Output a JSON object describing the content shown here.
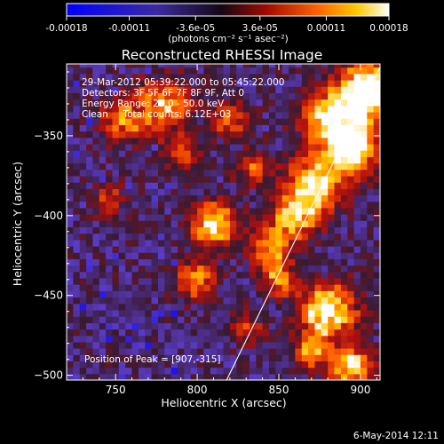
{
  "colorbar": {
    "tick_labels": [
      "-0.00018",
      "-0.00011",
      "-3.6e-05",
      "3.6e-05",
      "0.00011",
      "0.00018"
    ],
    "tick_values": [
      -0.00018,
      -0.00011,
      -3.6e-05,
      3.6e-05,
      0.00011,
      0.00018
    ],
    "range": [
      -0.00018,
      0.00018
    ],
    "unit_label": "(photons cm⁻² s⁻¹ asec⁻²)"
  },
  "footer": {
    "date": "6-May-2014 12:11"
  },
  "chart_data": {
    "type": "heatmap",
    "title": "Reconstructed RHESSI Image",
    "xlabel": "Heliocentric X (arcsec)",
    "ylabel": "Heliocentric Y (arcsec)",
    "xlim": [
      720,
      912
    ],
    "ylim": [
      -503,
      -305
    ],
    "x_ticks": [
      750,
      800,
      850,
      900
    ],
    "x_tick_labels": [
      "750",
      "800",
      "850",
      "900"
    ],
    "y_ticks": [
      -350,
      -400,
      -450,
      -500
    ],
    "y_tick_labels": [
      "−350",
      "−400",
      "−450",
      "−500"
    ],
    "annotations": [
      "29-Mar-2012 05:39:22.000 to 05:45:22.000",
      "Detectors: 3F 5F 6F 7F 8F 9F, Att 0",
      "Energy Range: 25.0 - 50.0 keV",
      "Clean     Total counts: 6.12E+03"
    ],
    "peak_label": "Position of Peak = [907,-315]",
    "peak": [
      907,
      -315
    ],
    "limb_line": [
      [
        818,
        -503
      ],
      [
        912,
        -307
      ]
    ],
    "colormap": [
      "#0000ff",
      "#5a3cc8",
      "#3a1a30",
      "#b01010",
      "#ff5a00",
      "#ffc800",
      "#ffffff"
    ]
  }
}
